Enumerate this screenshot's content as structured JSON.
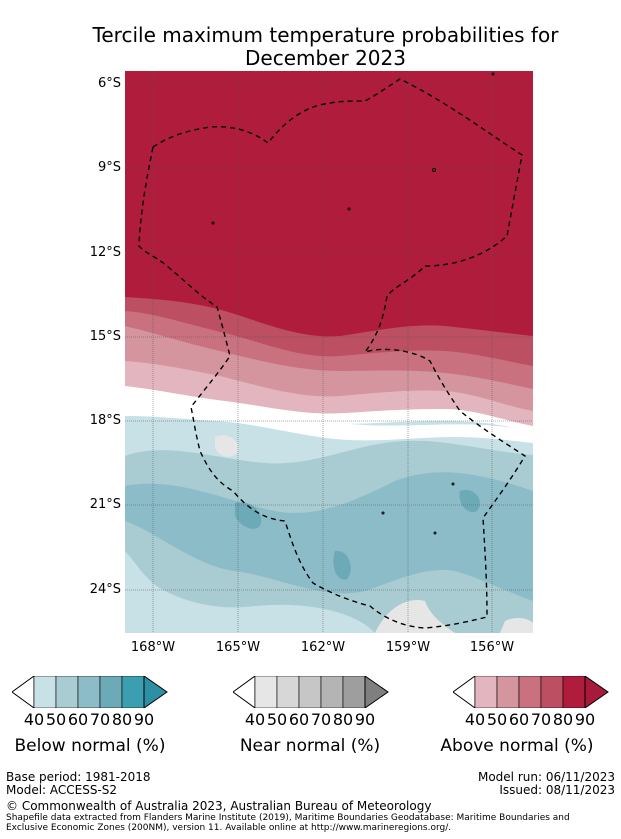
{
  "title": "Tercile maximum temperature probabilities for December 2023",
  "title_line1": "Tercile maximum temperature probabilities for",
  "title_line2": "December 2023",
  "lat_labels": [
    "6°S",
    "9°S",
    "12°S",
    "15°S",
    "18°S",
    "21°S",
    "24°S"
  ],
  "lon_labels": [
    "168°W",
    "165°W",
    "162°W",
    "159°W",
    "156°W"
  ],
  "colorbars": [
    {
      "title": "Below normal (%)",
      "ticks": [
        "40",
        "50",
        "60",
        "70",
        "80",
        "90"
      ],
      "colors": [
        "#ffffff",
        "#c7e1e7",
        "#a9cbd2",
        "#8dbcc9",
        "#6daab8",
        "#3c9fb1",
        "#2c8fa3"
      ]
    },
    {
      "title": "Near normal (%)",
      "ticks": [
        "40",
        "50",
        "60",
        "70",
        "80",
        "90"
      ],
      "colors": [
        "#ffffff",
        "#e6e6e6",
        "#d7d7d7",
        "#c6c6c6",
        "#b4b4b4",
        "#9e9e9e",
        "#7f7f7f"
      ]
    },
    {
      "title": "Above normal (%)",
      "ticks": [
        "40",
        "50",
        "60",
        "70",
        "80",
        "90"
      ],
      "colors": [
        "#ffffff",
        "#e3b6bf",
        "#d4959f",
        "#c9717f",
        "#bd4f62",
        "#b01c3c",
        "#a81a3a"
      ]
    }
  ],
  "footer": {
    "base_period": "Base period: 1981-2018",
    "model": "Model: ACCESS-S2",
    "model_run": "Model run: 06/11/2023",
    "issued": "Issued: 08/11/2023",
    "copyright": "© Commonwealth of Australia 2023, Australian Bureau of Meteorology",
    "shapefile_line1": "Shapefile data extracted from Flanders Marine Institute (2019), Maritime Boundaries Geodatabase: Maritime Boundaries and",
    "shapefile_line2": "Exclusive Economic Zones (200NM), version 11. Available online at http://www.marineregions.org/."
  },
  "map_colors": {
    "above_90": "#b01c3c",
    "above_80": "#bd4f62",
    "above_70": "#c9717f",
    "above_60": "#d4959f",
    "above_50": "#e3b6bf",
    "below_50": "#c7e1e7",
    "below_60": "#a9cbd2",
    "below_70": "#8dbcc9",
    "below_80": "#6daab8",
    "near_50": "#e6e6e6",
    "near_60": "#d7d7d7"
  }
}
